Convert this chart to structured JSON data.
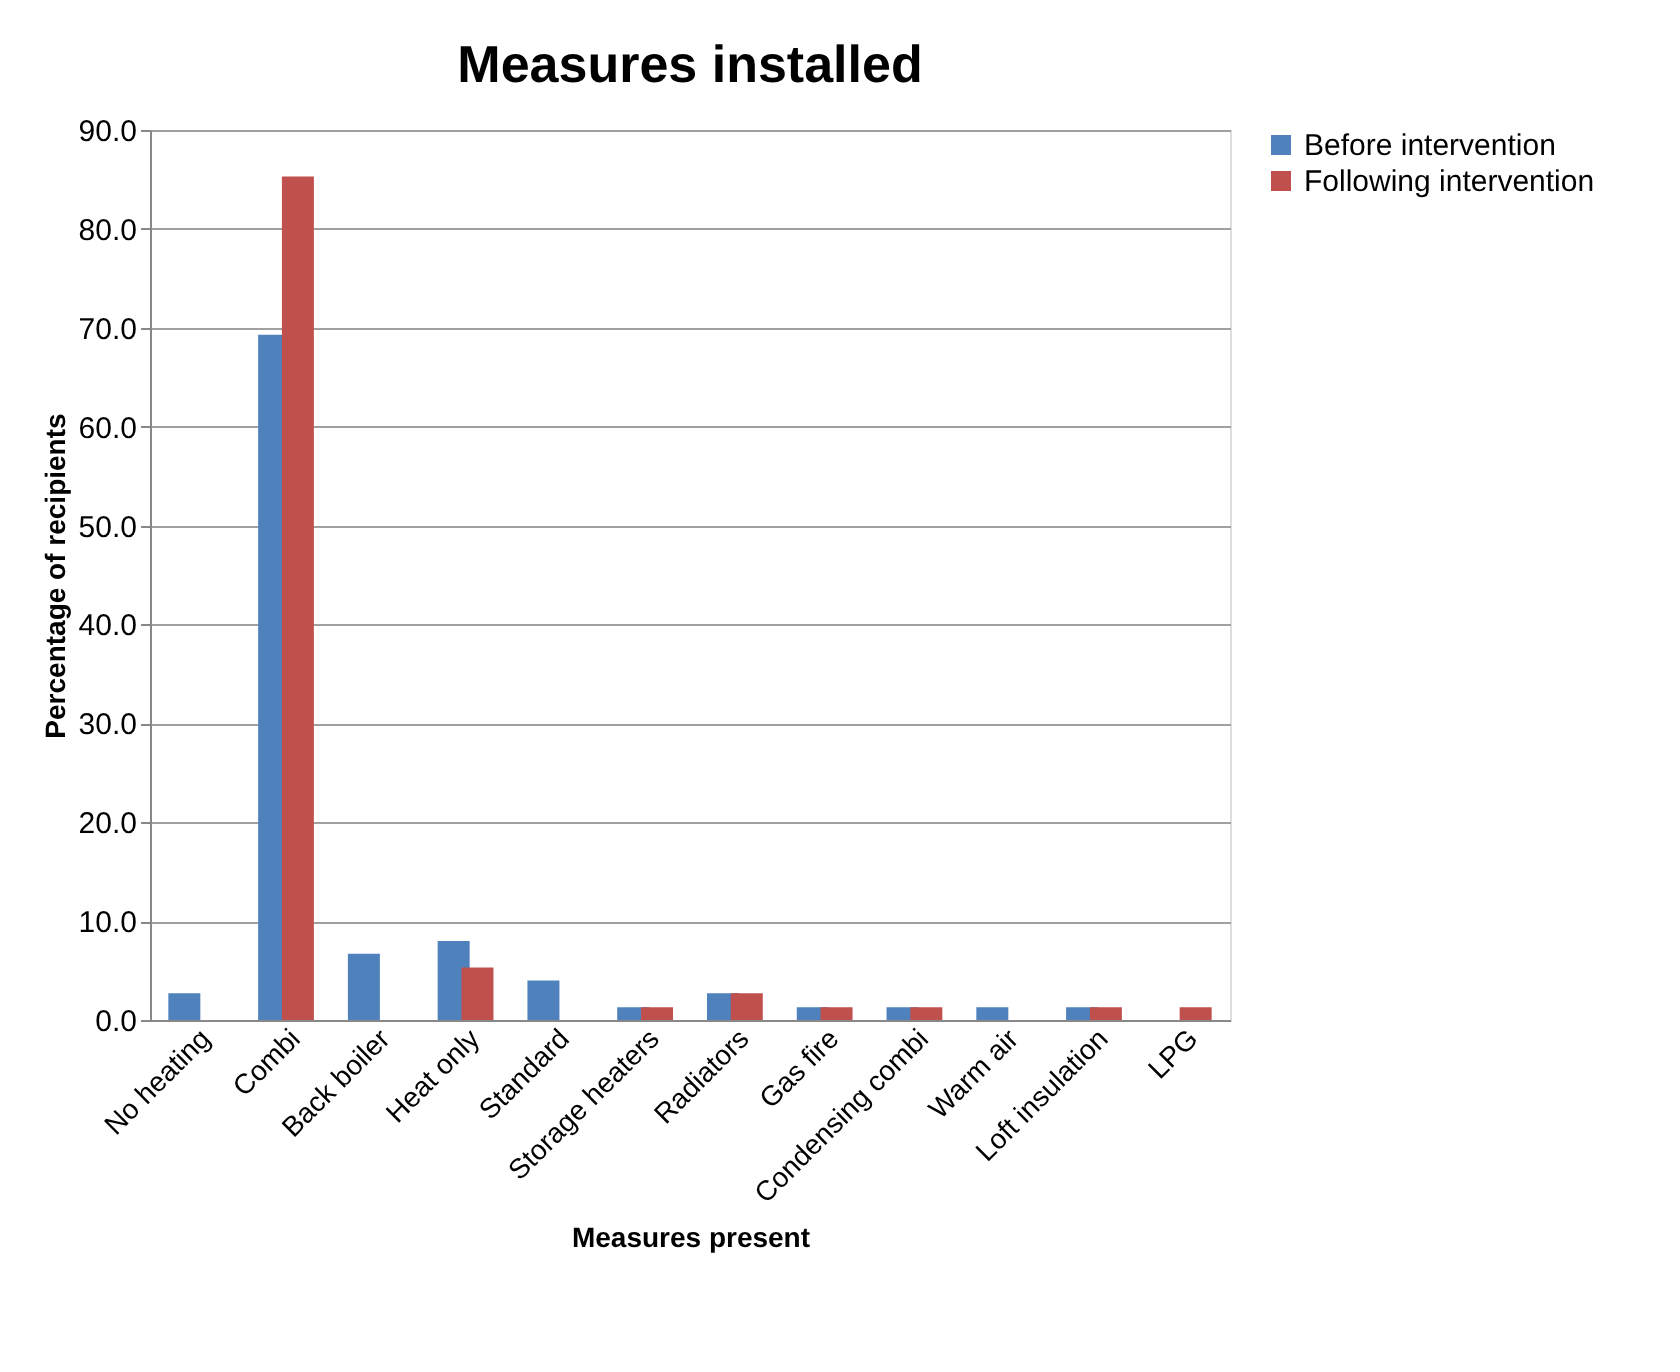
{
  "chart_data": {
    "type": "bar",
    "title": "Measures installed",
    "xlabel": "Measures present",
    "ylabel": "Percentage of recipients",
    "categories": [
      "No heating",
      "Combi",
      "Back boiler",
      "Heat only",
      "Standard",
      "Storage heaters",
      "Radiators",
      "Gas fire",
      "Condensing combi",
      "Warm air",
      "Loft insulation",
      "LPG"
    ],
    "series": [
      {
        "name": "Before intervention",
        "color": "#4f81bd",
        "values": [
          2.7,
          69.3,
          6.7,
          8.0,
          4.0,
          1.3,
          2.7,
          1.3,
          1.3,
          1.3,
          1.3,
          null
        ]
      },
      {
        "name": "Following intervention",
        "color": "#c0504d",
        "values": [
          null,
          85.3,
          null,
          5.3,
          null,
          1.3,
          2.7,
          1.3,
          1.3,
          null,
          1.3,
          1.3
        ]
      }
    ],
    "ylim": [
      0,
      90
    ],
    "yticks": [
      {
        "value": 0,
        "label": "0.0"
      },
      {
        "value": 10,
        "label": "10.0"
      },
      {
        "value": 20,
        "label": "20.0"
      },
      {
        "value": 30,
        "label": "30.0"
      },
      {
        "value": 40,
        "label": "40.0"
      },
      {
        "value": 50,
        "label": "50.0"
      },
      {
        "value": 60,
        "label": "60.0"
      },
      {
        "value": 70,
        "label": "70.0"
      },
      {
        "value": 80,
        "label": "80.0"
      },
      {
        "value": 90,
        "label": "90.0"
      }
    ],
    "grid": "y",
    "legend": "right"
  }
}
